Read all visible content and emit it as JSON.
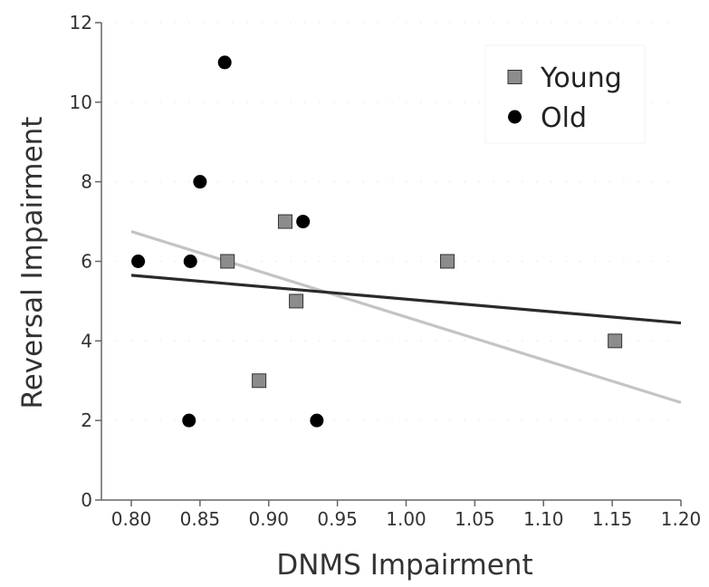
{
  "chart_data": {
    "type": "scatter",
    "title": "",
    "xlabel": "DNMS Impairment",
    "ylabel": "Reversal Impairment",
    "xlim": [
      0.78,
      1.2
    ],
    "ylim": [
      0,
      12
    ],
    "x_ticks": [
      "0.80",
      "0.85",
      "0.90",
      "0.95",
      "1.00",
      "1.05",
      "1.10",
      "1.15",
      "1.20"
    ],
    "y_ticks": [
      "0",
      "2",
      "4",
      "6",
      "8",
      "10",
      "12"
    ],
    "legend_position": "top-right",
    "series": [
      {
        "name": "Young",
        "marker": "square",
        "color": "#8c8c8c",
        "points": [
          [
            0.87,
            6
          ],
          [
            0.893,
            3
          ],
          [
            0.912,
            7
          ],
          [
            0.92,
            5
          ],
          [
            1.03,
            6
          ],
          [
            1.152,
            4
          ]
        ],
        "trend": [
          [
            0.8,
            6.75
          ],
          [
            1.2,
            2.45
          ]
        ],
        "trend_color": "#c4c4c4"
      },
      {
        "name": "Old",
        "marker": "circle",
        "color": "#000000",
        "points": [
          [
            0.805,
            6
          ],
          [
            0.843,
            6
          ],
          [
            0.842,
            2
          ],
          [
            0.85,
            8
          ],
          [
            0.868,
            11
          ],
          [
            0.925,
            7
          ],
          [
            0.935,
            2
          ]
        ],
        "trend": [
          [
            0.8,
            5.65
          ],
          [
            1.2,
            4.45
          ]
        ],
        "trend_color": "#2a2a2a"
      }
    ]
  }
}
